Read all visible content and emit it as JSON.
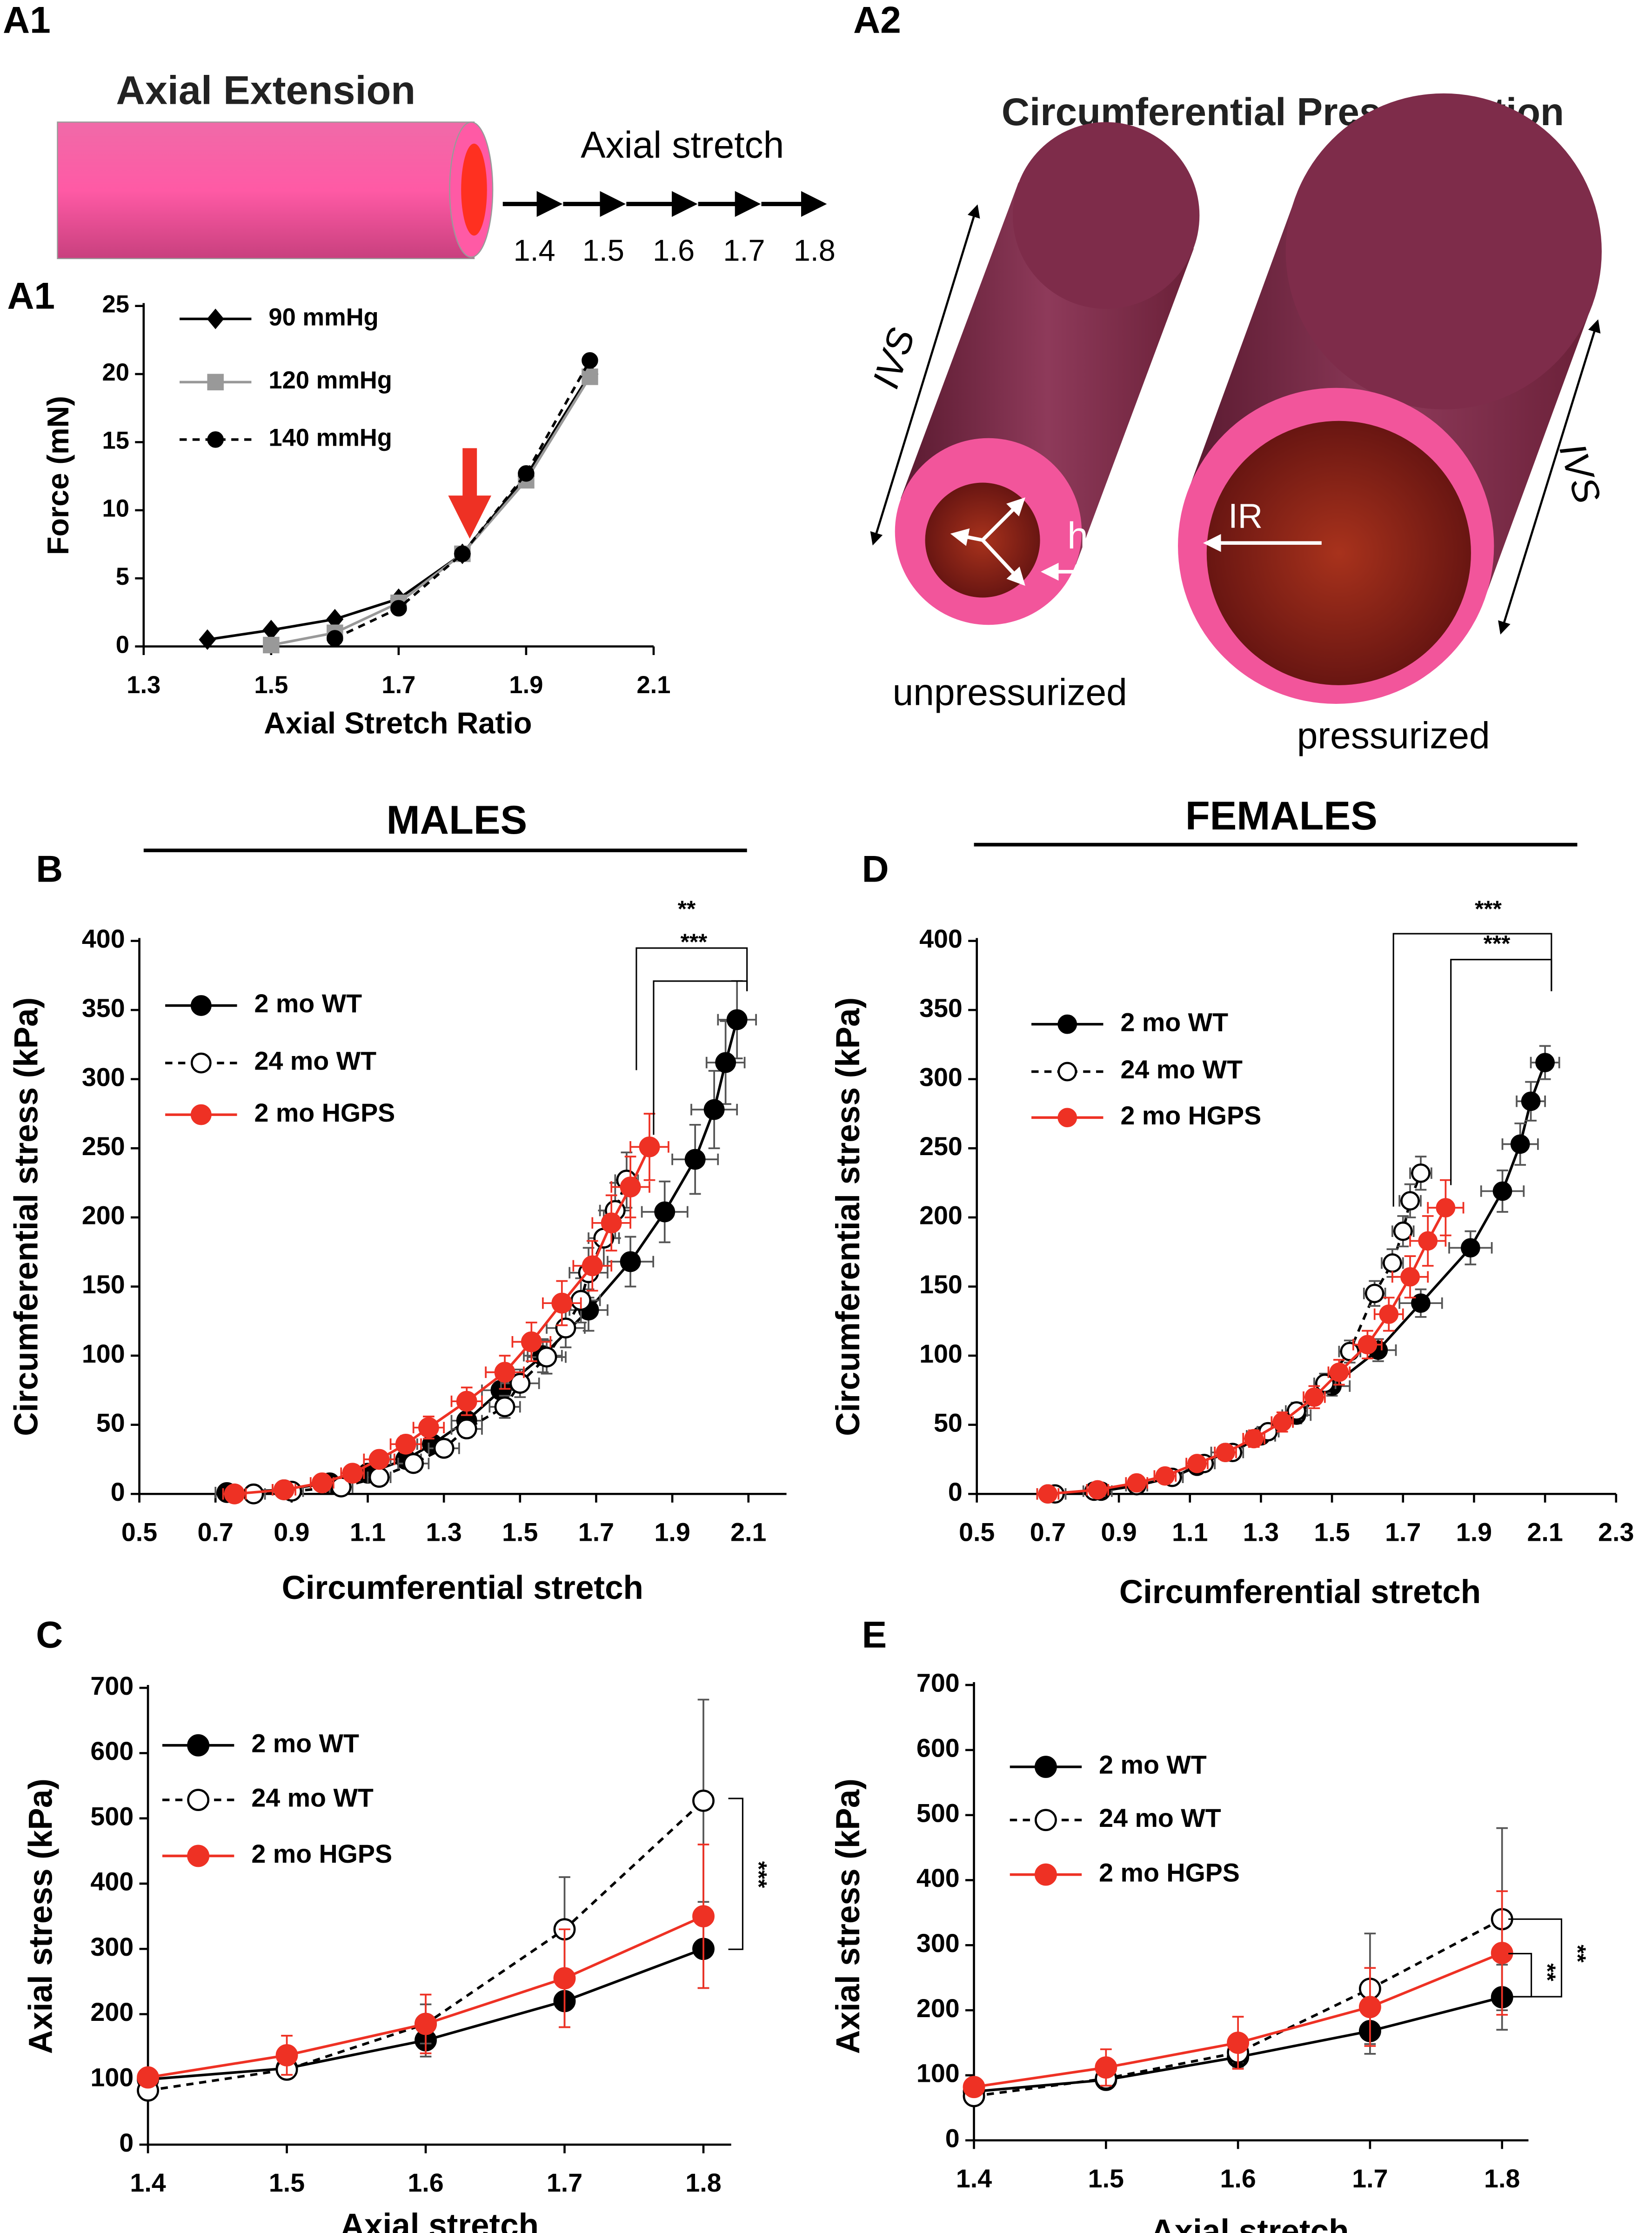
{
  "diagram": {
    "a1": {
      "panel_label": "A1",
      "title": "Axial Extension",
      "stretch_label": "Axial stretch",
      "stretch_values": [
        "1.4",
        "1.5",
        "1.6",
        "1.7",
        "1.8"
      ]
    },
    "a2": {
      "panel_label": "A2",
      "title": "Circumferential Pressurization",
      "length_label_left": "IVS",
      "length_label_right": "IVS",
      "thickness_label": "h",
      "radius_label": "IR",
      "left_caption": "unpressurized",
      "right_caption": "pressurized"
    }
  },
  "headers": {
    "males": "MALES",
    "females": "FEMALES"
  },
  "chart_data": [
    {
      "type": "line",
      "panel_label": "A1",
      "x_label": "Axial Stretch Ratio",
      "y_label": "Force (mN)",
      "xlim": [
        1.3,
        2.1
      ],
      "xticks": [
        1.3,
        1.5,
        1.7,
        1.9,
        2.1
      ],
      "ylim": [
        0,
        25
      ],
      "yticks": [
        0,
        5,
        10,
        15,
        20,
        25
      ],
      "series": [
        {
          "name": "90 mmHg",
          "color": "#000000",
          "marker": "diamond",
          "x": [
            1.4,
            1.5,
            1.6,
            1.7,
            1.8,
            1.9,
            2.0
          ],
          "values": [
            0.5,
            1.2,
            2.0,
            3.5,
            6.8,
            12.5,
            20
          ]
        },
        {
          "name": "120 mmHg",
          "color": "#999999",
          "marker": "square",
          "x": [
            1.5,
            1.6,
            1.7,
            1.8,
            1.9,
            2.0
          ],
          "values": [
            0.1,
            1.0,
            3.2,
            6.8,
            12.2,
            19.8
          ]
        },
        {
          "name": "140 mmHg",
          "color": "#000000",
          "marker": "circle",
          "dashed": true,
          "x": [
            1.6,
            1.7,
            1.8,
            1.9,
            2.0
          ],
          "values": [
            0.6,
            2.8,
            6.8,
            12.7,
            21
          ]
        }
      ]
    },
    {
      "type": "line",
      "panel_label": "B",
      "x_label": "Circumferential stretch",
      "y_label": "Circumferential stress (kPa)",
      "xlim": [
        0.5,
        2.2
      ],
      "xticks": [
        0.5,
        0.7,
        0.9,
        1.1,
        1.3,
        1.5,
        1.7,
        1.9,
        2.1
      ],
      "ylim": [
        0,
        400
      ],
      "yticks": [
        0,
        50,
        100,
        150,
        200,
        250,
        300,
        350,
        400
      ],
      "annotations": [
        "**",
        "***"
      ],
      "series": [
        {
          "name": "2 mo WT",
          "color": "#000000",
          "marker": "circle",
          "x": [
            0.73,
            0.88,
            1.0,
            1.1,
            1.2,
            1.27,
            1.36,
            1.45,
            1.56,
            1.68,
            1.79,
            1.88,
            1.96,
            2.01,
            2.04,
            2.07
          ],
          "values": [
            1,
            3,
            8,
            15,
            25,
            36,
            53,
            75,
            100,
            133,
            168,
            204,
            242,
            278,
            312,
            343
          ],
          "x_errors": [
            0.03,
            0.03,
            0.03,
            0.03,
            0.04,
            0.04,
            0.04,
            0.05,
            0.05,
            0.05,
            0.06,
            0.06,
            0.06,
            0.06,
            0.05,
            0.05
          ],
          "y_errors": [
            2,
            2,
            3,
            4,
            5,
            6,
            8,
            10,
            12,
            15,
            18,
            22,
            25,
            28,
            30,
            28
          ]
        },
        {
          "name": "24 mo WT",
          "color": "#000000",
          "marker": "circle",
          "open": true,
          "dashed": true,
          "x": [
            0.8,
            0.9,
            1.03,
            1.13,
            1.22,
            1.3,
            1.36,
            1.46,
            1.5,
            1.57,
            1.62,
            1.66,
            1.68,
            1.72,
            1.75,
            1.78
          ],
          "values": [
            0,
            2,
            5,
            12,
            22,
            33,
            47,
            63,
            80,
            99,
            120,
            140,
            160,
            185,
            205,
            227
          ],
          "x_errors": [
            0.03,
            0.03,
            0.03,
            0.03,
            0.04,
            0.04,
            0.04,
            0.04,
            0.05,
            0.05,
            0.05,
            0.05,
            0.05,
            0.04,
            0.04,
            0.03
          ],
          "y_errors": [
            2,
            2,
            2,
            3,
            4,
            5,
            6,
            8,
            10,
            12,
            14,
            16,
            18,
            20,
            20,
            20
          ]
        },
        {
          "name": "2 mo HGPS",
          "color": "#ee3124",
          "marker": "circle",
          "x": [
            0.75,
            0.88,
            0.98,
            1.06,
            1.13,
            1.2,
            1.26,
            1.36,
            1.46,
            1.53,
            1.61,
            1.69,
            1.74,
            1.79,
            1.84
          ],
          "values": [
            0,
            3,
            8,
            15,
            25,
            36,
            48,
            67,
            88,
            110,
            138,
            165,
            196,
            222,
            251
          ],
          "x_errors": [
            0.03,
            0.03,
            0.03,
            0.03,
            0.04,
            0.04,
            0.04,
            0.04,
            0.05,
            0.05,
            0.05,
            0.05,
            0.05,
            0.05,
            0.05
          ],
          "y_errors": [
            2,
            2,
            3,
            4,
            5,
            6,
            8,
            10,
            12,
            14,
            16,
            18,
            20,
            22,
            24
          ]
        }
      ]
    },
    {
      "type": "line",
      "panel_label": "C",
      "x_label": "Axial stretch",
      "y_label": "Axial stress (kPa)",
      "xlim": [
        1.4,
        1.82
      ],
      "xticks": [
        1.4,
        1.5,
        1.6,
        1.7,
        1.8
      ],
      "ylim": [
        0,
        700
      ],
      "yticks": [
        0,
        100,
        200,
        300,
        400,
        500,
        600,
        700
      ],
      "annotations": [
        "***"
      ],
      "x": [
        1.4,
        1.5,
        1.6,
        1.7,
        1.8
      ],
      "series": [
        {
          "name": "2 mo WT",
          "color": "#000000",
          "marker": "circle",
          "values": [
            100,
            117,
            160,
            220,
            300
          ],
          "y_errors": [
            10,
            10,
            25,
            40,
            60
          ]
        },
        {
          "name": "24 mo WT",
          "color": "#000000",
          "marker": "circle",
          "open": true,
          "dashed": true,
          "values": [
            83,
            115,
            185,
            330,
            527
          ],
          "y_errors": [
            10,
            10,
            30,
            80,
            155
          ]
        },
        {
          "name": "2 mo HGPS",
          "color": "#ee3124",
          "marker": "circle",
          "values": [
            103,
            137,
            185,
            255,
            350
          ],
          "y_errors": [
            12,
            30,
            45,
            75,
            110
          ]
        }
      ]
    },
    {
      "type": "line",
      "panel_label": "D",
      "x_label": "Circumferential stretch",
      "y_label": "Circumferential stress (kPa)",
      "xlim": [
        0.5,
        2.3
      ],
      "xticks": [
        0.5,
        0.7,
        0.9,
        1.1,
        1.3,
        1.5,
        1.7,
        1.9,
        2.1,
        2.3
      ],
      "ylim": [
        0,
        400
      ],
      "yticks": [
        0,
        50,
        100,
        150,
        200,
        250,
        300,
        350,
        400
      ],
      "annotations": [
        "***",
        "***"
      ],
      "series": [
        {
          "name": "2 mo WT",
          "color": "#000000",
          "marker": "circle",
          "x": [
            0.7,
            0.85,
            0.95,
            1.05,
            1.12,
            1.2,
            1.3,
            1.4,
            1.5,
            1.63,
            1.75,
            1.89,
            1.98,
            2.03,
            2.06,
            2.1
          ],
          "values": [
            0,
            2,
            6,
            12,
            20,
            30,
            42,
            57,
            78,
            104,
            138,
            178,
            219,
            253,
            284,
            312
          ],
          "x_errors": [
            0.03,
            0.03,
            0.03,
            0.03,
            0.03,
            0.04,
            0.04,
            0.04,
            0.05,
            0.05,
            0.06,
            0.06,
            0.06,
            0.05,
            0.04,
            0.04
          ],
          "y_errors": [
            2,
            2,
            2,
            3,
            3,
            4,
            5,
            6,
            7,
            8,
            10,
            12,
            15,
            15,
            14,
            12
          ]
        },
        {
          "name": "24 mo WT",
          "color": "#000000",
          "marker": "circle",
          "open": true,
          "dashed": true,
          "x": [
            0.72,
            0.83,
            0.95,
            1.05,
            1.14,
            1.22,
            1.32,
            1.4,
            1.48,
            1.55,
            1.62,
            1.67,
            1.7,
            1.72,
            1.75
          ],
          "values": [
            0,
            2,
            6,
            12,
            22,
            30,
            45,
            60,
            80,
            103,
            145,
            167,
            190,
            212,
            232
          ],
          "x_errors": [
            0.03,
            0.03,
            0.03,
            0.03,
            0.03,
            0.03,
            0.03,
            0.03,
            0.03,
            0.03,
            0.03,
            0.03,
            0.03,
            0.03,
            0.03
          ],
          "y_errors": [
            2,
            2,
            2,
            3,
            3,
            4,
            5,
            6,
            7,
            8,
            9,
            10,
            11,
            12,
            12
          ]
        },
        {
          "name": "2 mo HGPS",
          "color": "#ee3124",
          "marker": "circle",
          "x": [
            0.7,
            0.84,
            0.95,
            1.03,
            1.12,
            1.2,
            1.28,
            1.36,
            1.45,
            1.52,
            1.6,
            1.66,
            1.72,
            1.77,
            1.82
          ],
          "values": [
            0,
            3,
            8,
            13,
            22,
            30,
            40,
            52,
            70,
            88,
            108,
            130,
            157,
            183,
            207
          ],
          "x_errors": [
            0.03,
            0.03,
            0.03,
            0.03,
            0.03,
            0.03,
            0.03,
            0.03,
            0.03,
            0.03,
            0.04,
            0.04,
            0.05,
            0.05,
            0.05
          ],
          "y_errors": [
            2,
            2,
            3,
            3,
            4,
            5,
            6,
            7,
            8,
            9,
            10,
            12,
            15,
            18,
            20
          ]
        }
      ]
    },
    {
      "type": "line",
      "panel_label": "E",
      "x_label": "Axial stretch",
      "y_label": "Axial stress (kPa)",
      "xlim": [
        1.4,
        1.82
      ],
      "xticks": [
        1.4,
        1.5,
        1.6,
        1.7,
        1.8
      ],
      "ylim": [
        0,
        700
      ],
      "yticks": [
        0,
        100,
        200,
        300,
        400,
        500,
        600,
        700
      ],
      "annotations": [
        "**",
        "**"
      ],
      "x": [
        1.4,
        1.5,
        1.6,
        1.7,
        1.8
      ],
      "series": [
        {
          "name": "2 mo WT",
          "color": "#000000",
          "marker": "circle",
          "values": [
            75,
            93,
            128,
            168,
            220
          ],
          "y_errors": [
            8,
            8,
            15,
            35,
            50
          ]
        },
        {
          "name": "24 mo WT",
          "color": "#000000",
          "marker": "circle",
          "open": true,
          "dashed": true,
          "values": [
            68,
            95,
            135,
            233,
            340
          ],
          "y_errors": [
            8,
            8,
            15,
            85,
            140
          ]
        },
        {
          "name": "2 mo HGPS",
          "color": "#ee3124",
          "marker": "circle",
          "values": [
            82,
            112,
            150,
            205,
            288
          ],
          "y_errors": [
            10,
            28,
            40,
            60,
            95
          ]
        }
      ]
    }
  ]
}
